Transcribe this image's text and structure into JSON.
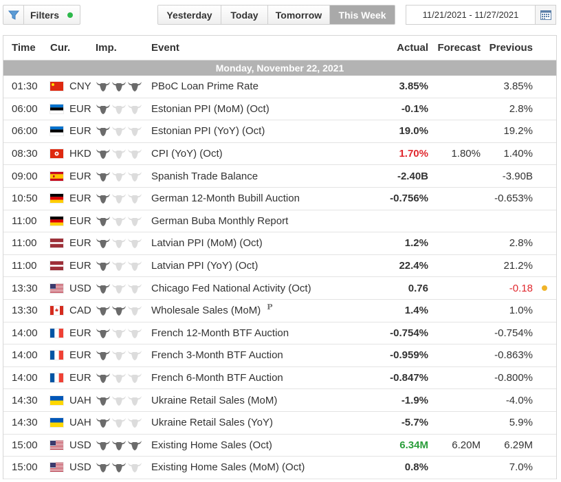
{
  "toolbar": {
    "filters_label": "Filters",
    "periods": [
      "Yesterday",
      "Today",
      "Tomorrow",
      "This Week"
    ],
    "active_period": "This Week",
    "date_range": "11/21/2021 - 11/27/2021"
  },
  "table": {
    "headers": {
      "time": "Time",
      "currency": "Cur.",
      "importance": "Imp.",
      "event": "Event",
      "actual": "Actual",
      "forecast": "Forecast",
      "previous": "Previous"
    },
    "day_label": "Monday, November 22, 2021",
    "rows": [
      {
        "time": "01:30",
        "flag": "CN",
        "currency": "CNY",
        "importance": 3,
        "event": "PBoC Loan Prime Rate",
        "actual": "3.85%",
        "actual_color": "default",
        "forecast": "",
        "previous": "3.85%",
        "previous_color": "default"
      },
      {
        "time": "06:00",
        "flag": "EE",
        "currency": "EUR",
        "importance": 1,
        "event": "Estonian PPI (MoM) (Oct)",
        "actual": "-0.1%",
        "actual_color": "default",
        "forecast": "",
        "previous": "2.8%",
        "previous_color": "default"
      },
      {
        "time": "06:00",
        "flag": "EE",
        "currency": "EUR",
        "importance": 1,
        "event": "Estonian PPI (YoY) (Oct)",
        "actual": "19.0%",
        "actual_color": "default",
        "forecast": "",
        "previous": "19.2%",
        "previous_color": "default"
      },
      {
        "time": "08:30",
        "flag": "HK",
        "currency": "HKD",
        "importance": 1,
        "event": "CPI (YoY) (Oct)",
        "actual": "1.70%",
        "actual_color": "negative",
        "forecast": "1.80%",
        "previous": "1.40%",
        "previous_color": "default"
      },
      {
        "time": "09:00",
        "flag": "ES",
        "currency": "EUR",
        "importance": 1,
        "event": "Spanish Trade Balance",
        "actual": "-2.40B",
        "actual_color": "default",
        "forecast": "",
        "previous": "-3.90B",
        "previous_color": "default"
      },
      {
        "time": "10:50",
        "flag": "DE",
        "currency": "EUR",
        "importance": 1,
        "event": "German 12-Month Bubill Auction",
        "actual": "-0.756%",
        "actual_color": "default",
        "forecast": "",
        "previous": "-0.653%",
        "previous_color": "default"
      },
      {
        "time": "11:00",
        "flag": "DE",
        "currency": "EUR",
        "importance": 1,
        "event": "German Buba Monthly Report",
        "actual": "",
        "actual_color": "default",
        "forecast": "",
        "previous": "",
        "previous_color": "default"
      },
      {
        "time": "11:00",
        "flag": "LV",
        "currency": "EUR",
        "importance": 1,
        "event": "Latvian PPI (MoM) (Oct)",
        "actual": "1.2%",
        "actual_color": "default",
        "forecast": "",
        "previous": "2.8%",
        "previous_color": "default"
      },
      {
        "time": "11:00",
        "flag": "LV",
        "currency": "EUR",
        "importance": 1,
        "event": "Latvian PPI (YoY) (Oct)",
        "actual": "22.4%",
        "actual_color": "default",
        "forecast": "",
        "previous": "21.2%",
        "previous_color": "default"
      },
      {
        "time": "13:30",
        "flag": "US",
        "currency": "USD",
        "importance": 1,
        "event": "Chicago Fed National Activity (Oct)",
        "actual": "0.76",
        "actual_color": "default",
        "forecast": "",
        "previous": "-0.18",
        "previous_color": "negative",
        "revised": true
      },
      {
        "time": "13:30",
        "flag": "CA",
        "currency": "CAD",
        "importance": 2,
        "event": "Wholesale Sales (MoM)",
        "preliminary": "P",
        "actual": "1.4%",
        "actual_color": "default",
        "forecast": "",
        "previous": "1.0%",
        "previous_color": "default"
      },
      {
        "time": "14:00",
        "flag": "FR",
        "currency": "EUR",
        "importance": 1,
        "event": "French 12-Month BTF Auction",
        "actual": "-0.754%",
        "actual_color": "default",
        "forecast": "",
        "previous": "-0.754%",
        "previous_color": "default"
      },
      {
        "time": "14:00",
        "flag": "FR",
        "currency": "EUR",
        "importance": 1,
        "event": "French 3-Month BTF Auction",
        "actual": "-0.959%",
        "actual_color": "default",
        "forecast": "",
        "previous": "-0.863%",
        "previous_color": "default"
      },
      {
        "time": "14:00",
        "flag": "FR",
        "currency": "EUR",
        "importance": 1,
        "event": "French 6-Month BTF Auction",
        "actual": "-0.847%",
        "actual_color": "default",
        "forecast": "",
        "previous": "-0.800%",
        "previous_color": "default"
      },
      {
        "time": "14:30",
        "flag": "UA",
        "currency": "UAH",
        "importance": 1,
        "event": "Ukraine Retail Sales (MoM)",
        "actual": "-1.9%",
        "actual_color": "default",
        "forecast": "",
        "previous": "-4.0%",
        "previous_color": "default"
      },
      {
        "time": "14:30",
        "flag": "UA",
        "currency": "UAH",
        "importance": 1,
        "event": "Ukraine Retail Sales (YoY)",
        "actual": "-5.7%",
        "actual_color": "default",
        "forecast": "",
        "previous": "5.9%",
        "previous_color": "default"
      },
      {
        "time": "15:00",
        "flag": "US",
        "currency": "USD",
        "importance": 3,
        "event": "Existing Home Sales (Oct)",
        "actual": "6.34M",
        "actual_color": "positive",
        "forecast": "6.20M",
        "previous": "6.29M",
        "previous_color": "default"
      },
      {
        "time": "15:00",
        "flag": "US",
        "currency": "USD",
        "importance": 2,
        "event": "Existing Home Sales (MoM) (Oct)",
        "actual": "0.8%",
        "actual_color": "default",
        "forecast": "",
        "previous": "7.0%",
        "previous_color": "default"
      }
    ]
  },
  "colors": {
    "positive": "#2a9d3a",
    "negative": "#e0282e",
    "bull_active": "#6b6b6b",
    "bull_inactive": "#dcdcdc",
    "day_bar": "#b3b3b3"
  }
}
